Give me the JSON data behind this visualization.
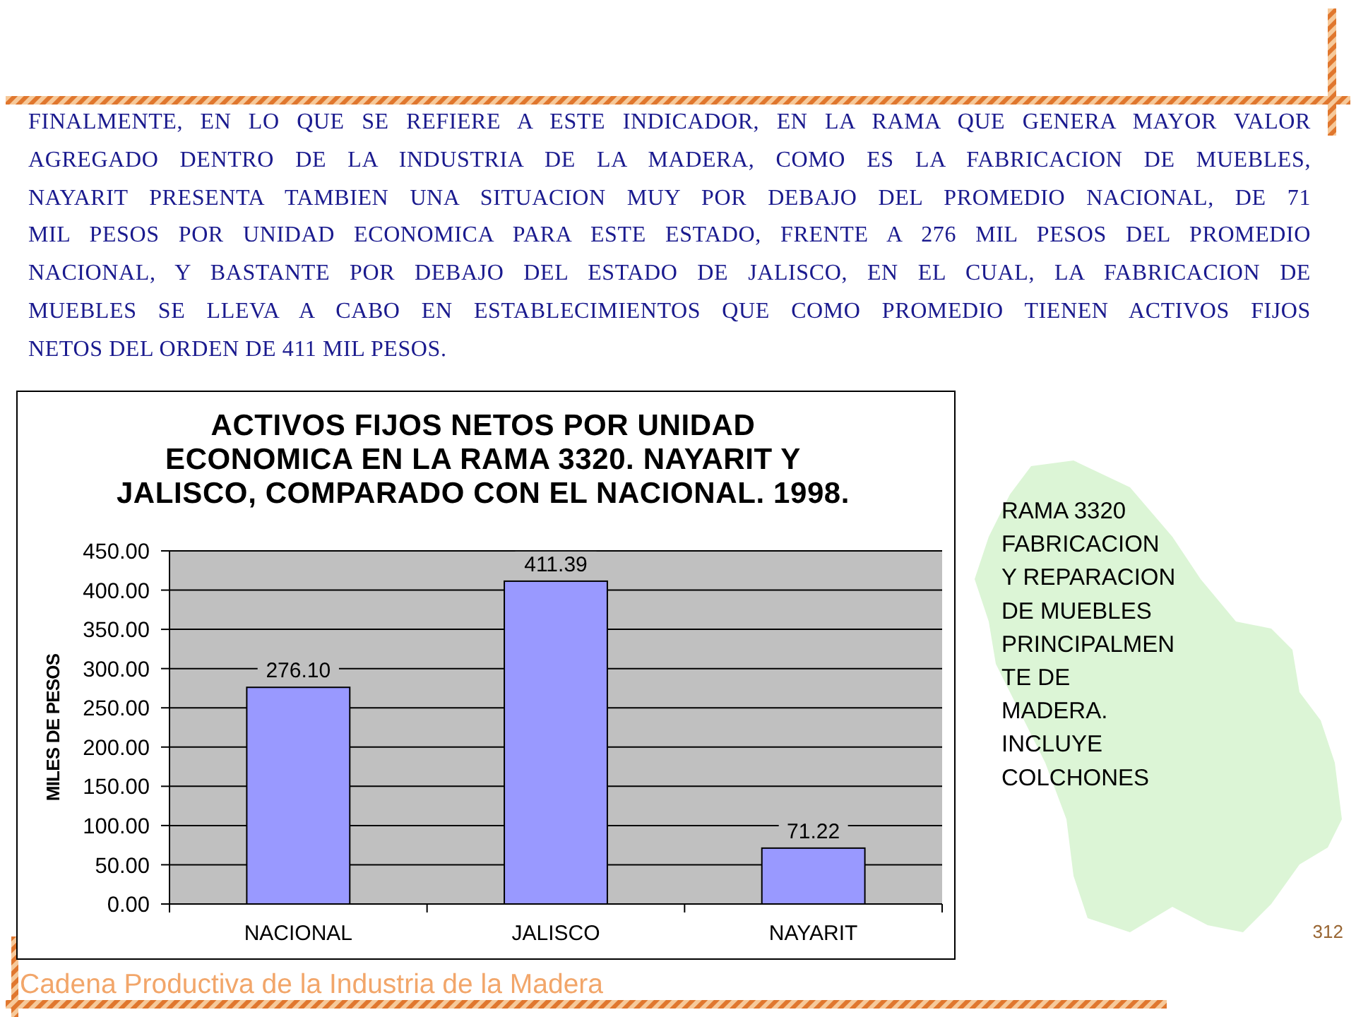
{
  "chart_data": {
    "type": "bar",
    "title": "ACTIVOS FIJOS NETOS POR UNIDAD\nECONOMICA EN LA RAMA 3320. NAYARIT Y\nJALISCO, COMPARADO CON EL NACIONAL. 1998.",
    "ylabel": "MILES DE PESOS",
    "categories": [
      "NACIONAL",
      "JALISCO",
      "NAYARIT"
    ],
    "values": [
      276.1,
      411.39,
      71.22
    ],
    "color": "#9999ff",
    "value_labels": [
      "276.10",
      "411.39",
      "71.22"
    ],
    "ylim": [
      0,
      450
    ],
    "yticks": [
      {
        "value": 0,
        "label": "0.00"
      },
      {
        "value": 50,
        "label": "50.00"
      },
      {
        "value": 100,
        "label": "100.00"
      },
      {
        "value": 150,
        "label": "150.00"
      },
      {
        "value": 200,
        "label": "200.00"
      },
      {
        "value": 250,
        "label": "250.00"
      },
      {
        "value": 300,
        "label": "300.00"
      },
      {
        "value": 350,
        "label": "350.00"
      },
      {
        "value": 400,
        "label": "400.00"
      },
      {
        "value": 450,
        "label": "450.00"
      }
    ],
    "grid": "y",
    "annotations": [
      "FINALMENTE, EN LO QUE SE REFIERE A ESTE INDICADOR, EN LA RAMA QUE GENERA MAYOR VALOR AGREGADO DENTRO DE LA INDUSTRIA DE LA MADERA, COMO ES LA FABRICACION DE MUEBLES, NAYARIT PRESENTA TAMBIEN UNA SITUACION MUY POR DEBAJO DEL PROMEDIO NACIONAL, DE 71 MIL PESOS POR UNIDAD ECONOMICA PARA ESTE ESTADO, FRENTE A 276 MIL PESOS DEL PROMEDIO NACIONAL, Y BASTANTE POR DEBAJO DEL ESTADO DE JALISCO, EN EL CUAL, LA FABRICACION DE MUEBLES SE LLEVA A CABO EN ESTABLECIMIENTOS QUE COMO PROMEDIO TIENEN ACTIVOS FIJOS NETOS DEL ORDEN DE 411 MIL PESOS.",
      "RAMA 3320\nFABRICACION\nY REPARACION\nDE MUEBLES\nPRINCIPALMEN\nTE DE\nMADERA.\nINCLUYE\nCOLCHONES",
      "Cadena Productiva de la Industria de la Madera",
      "312"
    ]
  }
}
